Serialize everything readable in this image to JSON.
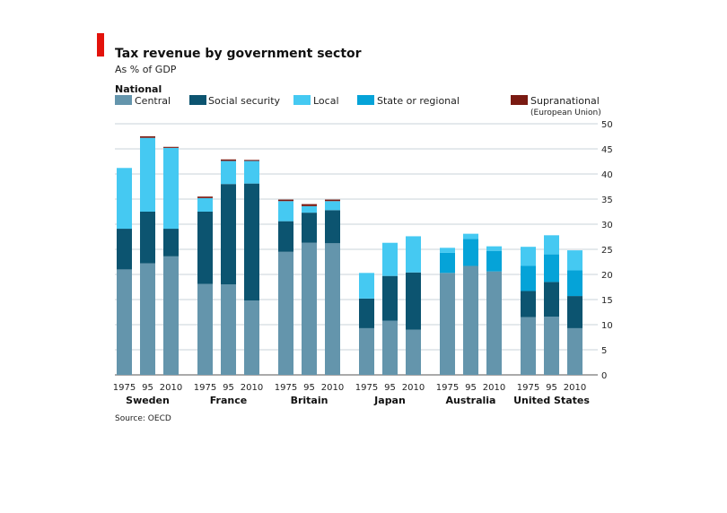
{
  "title": "Tax revenue by government sector",
  "subtitle": "As % of GDP",
  "legend": {
    "heading": "National",
    "items": [
      {
        "key": "central",
        "label": "Central",
        "color": "#6495ac"
      },
      {
        "key": "social",
        "label": "Social security",
        "color": "#0c5470"
      },
      {
        "key": "local",
        "label": "Local",
        "color": "#45c9f2"
      },
      {
        "key": "state",
        "label": "State or regional",
        "color": "#05a3d8"
      },
      {
        "key": "supra",
        "label": "Supranational",
        "color": "#7a1a12",
        "note": "(European Union)"
      }
    ]
  },
  "source": "Source: OECD",
  "accent_color": "#e3120b",
  "chart_data": {
    "type": "bar",
    "stacked": true,
    "yaxis": "right",
    "ylim": [
      0,
      50
    ],
    "yticks": [
      0,
      5,
      10,
      15,
      20,
      25,
      30,
      35,
      40,
      45,
      50
    ],
    "grid": true,
    "stack_order": [
      "central",
      "social",
      "state",
      "local",
      "supra"
    ],
    "groups": [
      {
        "country": "Sweden",
        "bars": [
          {
            "year": "1975",
            "central": 21.0,
            "social": 8.1,
            "state": 0,
            "local": 12.1,
            "supra": 0
          },
          {
            "year": "95",
            "central": 22.2,
            "social": 10.3,
            "state": 0,
            "local": 14.7,
            "supra": 0.3
          },
          {
            "year": "2010",
            "central": 23.6,
            "social": 5.5,
            "state": 0,
            "local": 16.1,
            "supra": 0.2
          }
        ]
      },
      {
        "country": "France",
        "bars": [
          {
            "year": "1975",
            "central": 18.1,
            "social": 14.4,
            "state": 0,
            "local": 2.7,
            "supra": 0.3
          },
          {
            "year": "95",
            "central": 18.0,
            "social": 20.0,
            "state": 0,
            "local": 4.6,
            "supra": 0.3
          },
          {
            "year": "2010",
            "central": 14.8,
            "social": 23.3,
            "state": 0,
            "local": 4.5,
            "supra": 0.2
          }
        ]
      },
      {
        "country": "Britain",
        "bars": [
          {
            "year": "1975",
            "central": 24.5,
            "social": 6.1,
            "state": 0,
            "local": 4.0,
            "supra": 0.3
          },
          {
            "year": "95",
            "central": 26.3,
            "social": 6.0,
            "state": 0,
            "local": 1.3,
            "supra": 0.4
          },
          {
            "year": "2010",
            "central": 26.2,
            "social": 6.6,
            "state": 0,
            "local": 1.8,
            "supra": 0.3
          }
        ]
      },
      {
        "country": "Japan",
        "bars": [
          {
            "year": "1975",
            "central": 9.3,
            "social": 5.9,
            "state": 0,
            "local": 5.1,
            "supra": 0
          },
          {
            "year": "95",
            "central": 10.8,
            "social": 8.9,
            "state": 0,
            "local": 6.6,
            "supra": 0
          },
          {
            "year": "2010",
            "central": 9.0,
            "social": 11.4,
            "state": 0,
            "local": 7.2,
            "supra": 0
          }
        ]
      },
      {
        "country": "Australia",
        "bars": [
          {
            "year": "1975",
            "central": 20.3,
            "social": 0,
            "state": 4.0,
            "local": 1.0,
            "supra": 0
          },
          {
            "year": "95",
            "central": 21.7,
            "social": 0,
            "state": 5.4,
            "local": 1.0,
            "supra": 0
          },
          {
            "year": "2010",
            "central": 20.6,
            "social": 0,
            "state": 4.1,
            "local": 0.9,
            "supra": 0
          }
        ]
      },
      {
        "country": "United States",
        "bars": [
          {
            "year": "1975",
            "central": 11.5,
            "social": 5.2,
            "state": 5.0,
            "local": 3.8,
            "supra": 0
          },
          {
            "year": "95",
            "central": 11.6,
            "social": 6.9,
            "state": 5.5,
            "local": 3.8,
            "supra": 0
          },
          {
            "year": "2010",
            "central": 9.3,
            "social": 6.4,
            "state": 5.1,
            "local": 4.0,
            "supra": 0
          }
        ]
      }
    ]
  }
}
